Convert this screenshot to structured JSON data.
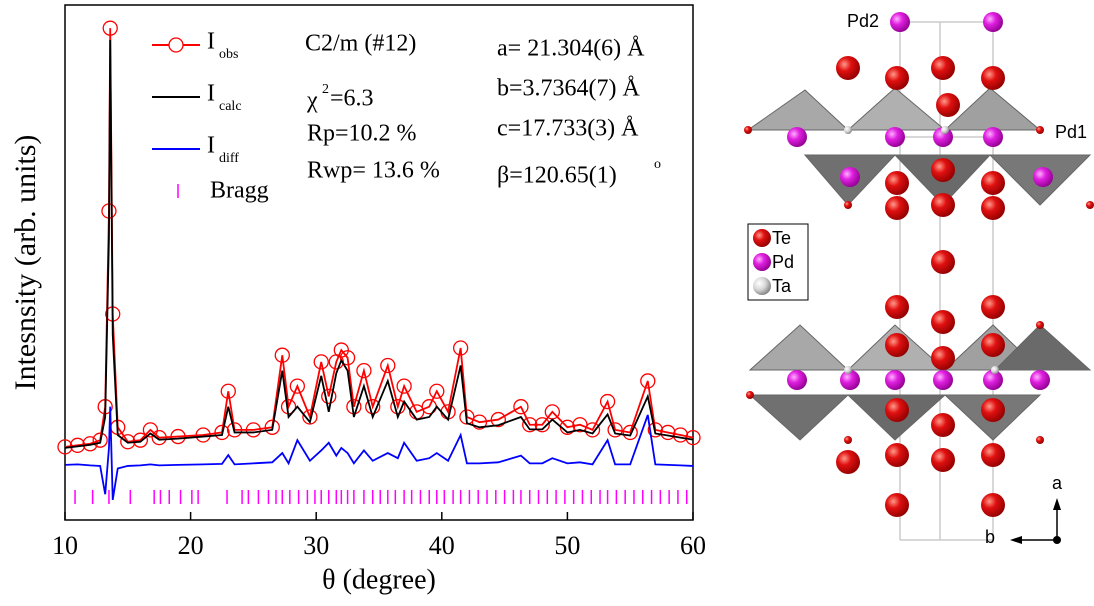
{
  "chart_data": {
    "type": "line",
    "xlabel": "θ (degree)",
    "ylabel": "Intesnsity (arb. units)",
    "xlim": [
      10,
      60
    ],
    "xticks": [
      10,
      20,
      30,
      40,
      50,
      60
    ],
    "ylim": [
      0,
      100
    ],
    "x": [
      10,
      11,
      12,
      12.8,
      13.2,
      13.5,
      13.6,
      13.8,
      14.2,
      15,
      16,
      16.8,
      17.5,
      19,
      21,
      22.5,
      23,
      23.5,
      25,
      26.5,
      27.3,
      27.8,
      28.5,
      29.5,
      30.4,
      31,
      31.6,
      32,
      32.5,
      33,
      33.8,
      34.5,
      35.7,
      36.5,
      37,
      38,
      39,
      39.6,
      40.5,
      41.5,
      42,
      43,
      44.5,
      46.3,
      47,
      48,
      48.8,
      50,
      51,
      52,
      53.2,
      53.8,
      55,
      56.4,
      57,
      58,
      59,
      60
    ],
    "series": [
      {
        "name": "I",
        "name_sub": "obs",
        "color": "#ff0000",
        "marker": "circle",
        "values": [
          14.2,
          14.5,
          14.8,
          15.5,
          22,
          60,
          95.5,
          40,
          18,
          15.2,
          15.5,
          17.5,
          16,
          16.2,
          16.5,
          17,
          25,
          17.5,
          17.5,
          18,
          32,
          22,
          26,
          20,
          30.7,
          24,
          30.7,
          33,
          31.5,
          22,
          29,
          22,
          30,
          22,
          26,
          21,
          22,
          25,
          21,
          33.4,
          20,
          19,
          19.5,
          22,
          18.5,
          18.5,
          21,
          18,
          18.5,
          17.5,
          23,
          17.5,
          17,
          27,
          17.5,
          17,
          16.5,
          16
        ]
      },
      {
        "name": "I",
        "name_sub": "calc",
        "color": "#000000",
        "values": [
          14,
          14.3,
          14.6,
          15,
          20,
          55,
          93.2,
          36,
          16.5,
          15,
          15.2,
          16.8,
          15.6,
          15.8,
          16.2,
          16.5,
          22,
          17,
          17,
          17.5,
          29,
          20,
          22,
          19,
          28,
          21,
          28.5,
          31,
          29,
          20,
          26,
          20,
          27,
          20,
          23,
          19.5,
          20,
          22,
          19.5,
          30,
          18.8,
          18,
          18.4,
          20,
          17.6,
          17.6,
          19.5,
          17,
          17.5,
          16.8,
          20.5,
          16.8,
          16.4,
          24,
          16.8,
          16.4,
          16,
          15.6
        ]
      },
      {
        "name": "I",
        "name_sub": "diff",
        "color": "#0000ff",
        "values": [
          10.7,
          10.8,
          10.6,
          10.5,
          5,
          14,
          22,
          3.9,
          10,
          10.5,
          10.6,
          10.8,
          10.6,
          10.7,
          10.8,
          10.9,
          12.6,
          10.8,
          11,
          11.2,
          13,
          11,
          15.5,
          11.5,
          13.5,
          15,
          12.5,
          14,
          13,
          11,
          13.5,
          11.5,
          13,
          12,
          15,
          11.5,
          12,
          13,
          11.5,
          16.5,
          11,
          11,
          11.2,
          12.5,
          11,
          11,
          12,
          11,
          11.2,
          10.8,
          15.5,
          10.8,
          10.8,
          20.4,
          10.8,
          10.7,
          10.6,
          10.5
        ]
      }
    ],
    "bragg": {
      "name": "Bragg",
      "color": "#ff00ff",
      "x": [
        10.8,
        12.2,
        13.5,
        15.2,
        17.1,
        17.6,
        18.3,
        19.2,
        20.1,
        20.6,
        22.9,
        24.1,
        24.6,
        25.4,
        26.2,
        26.8,
        27.3,
        27.9,
        28.6,
        29.3,
        29.9,
        30.4,
        31,
        31.6,
        32,
        32.5,
        33,
        33.8,
        34.5,
        35.1,
        35.7,
        36.3,
        37,
        37.6,
        38.3,
        39,
        39.6,
        40.2,
        40.9,
        41.5,
        42.2,
        42.9,
        43.6,
        44.3,
        45,
        45.7,
        46.3,
        47,
        47.7,
        48.4,
        49.1,
        49.8,
        50.5,
        51.2,
        51.9,
        52.6,
        53.2,
        53.9,
        54.6,
        55.3,
        56,
        56.7,
        57.4,
        58.1,
        58.8,
        59.5
      ]
    },
    "annotations": {
      "space_group": "C2/m (#12)",
      "chi": "χ",
      "chi_sup": "2",
      "chi_value": "=6.3",
      "rp": "Rp=10.2 %",
      "rwp": "Rwp= 13.6 %"
    },
    "lattice": {
      "a": "a= 21.304(6) Å",
      "b": "b=3.7364(7) Å",
      "c": "c=17.733(3) Å",
      "beta": "β=120.65(1)",
      "beta_sup": "o"
    }
  },
  "structure": {
    "site_labels": [
      "Pd2",
      "Pd1"
    ],
    "legend": [
      "Te",
      "Pd",
      "Ta"
    ],
    "axes": [
      "a",
      "b"
    ]
  }
}
